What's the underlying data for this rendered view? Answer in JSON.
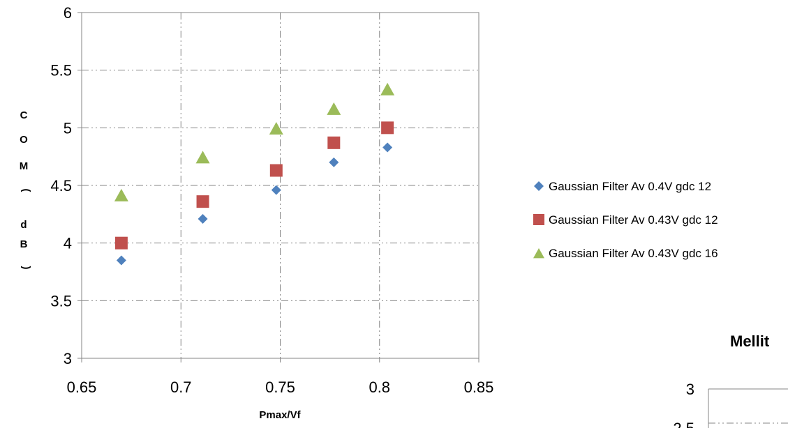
{
  "chart_data": [
    {
      "type": "scatter",
      "xlabel": "Pmax/Vf",
      "ylabel_chars": [
        "C",
        "O",
        "M",
        "(",
        "d",
        "B",
        ")"
      ],
      "xlim": [
        0.65,
        0.85
      ],
      "ylim": [
        3,
        6
      ],
      "x_ticks": [
        "0.65",
        "0.7",
        "0.75",
        "0.8",
        "0.85"
      ],
      "y_ticks": [
        "3",
        "3.5",
        "4",
        "4.5",
        "5",
        "5.5",
        "6"
      ],
      "grid": true,
      "legend_position": "right",
      "series": [
        {
          "name": "Gaussian Filter Av 0.4V gdc 12",
          "marker": "diamond",
          "color": "#4F81BD",
          "points": [
            [
              0.67,
              3.85
            ],
            [
              0.711,
              4.21
            ],
            [
              0.748,
              4.46
            ],
            [
              0.777,
              4.7
            ],
            [
              0.804,
              4.83
            ]
          ]
        },
        {
          "name": "Gaussian Filter Av 0.43V gdc 12",
          "marker": "square",
          "color": "#C0504D",
          "points": [
            [
              0.67,
              4.0
            ],
            [
              0.711,
              4.36
            ],
            [
              0.748,
              4.63
            ],
            [
              0.777,
              4.87
            ],
            [
              0.804,
              5.0
            ]
          ]
        },
        {
          "name": "Gaussian Filter Av 0.43V gdc 16",
          "marker": "triangle",
          "color": "#9BBB59",
          "points": [
            [
              0.67,
              4.41
            ],
            [
              0.711,
              4.74
            ],
            [
              0.748,
              4.99
            ],
            [
              0.777,
              5.16
            ],
            [
              0.804,
              5.33
            ]
          ]
        }
      ]
    },
    {
      "type": "scatter",
      "title": "Mellit",
      "y_ticks": [
        "3",
        "2.5"
      ],
      "grid": true
    }
  ]
}
